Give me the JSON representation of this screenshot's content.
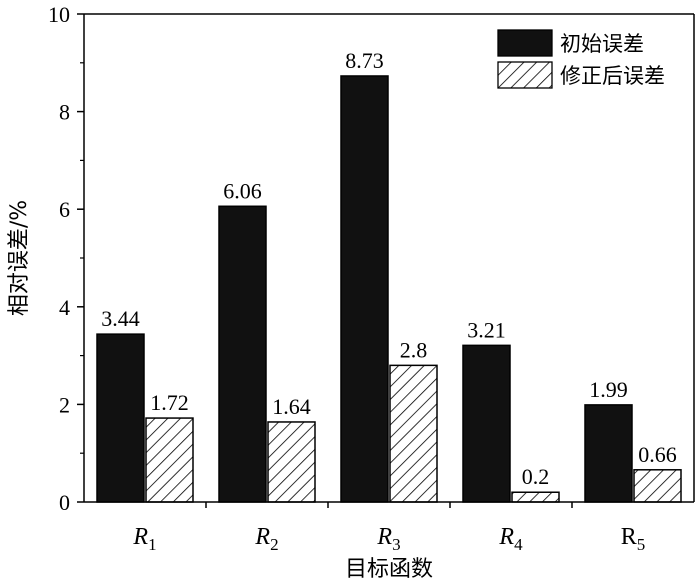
{
  "chart_data": {
    "type": "bar",
    "categories": [
      {
        "main": "R",
        "sub": "1",
        "italic": true
      },
      {
        "main": "R",
        "sub": "2",
        "italic": true
      },
      {
        "main": "R",
        "sub": "3",
        "italic": true
      },
      {
        "main": "R",
        "sub": "4",
        "italic": true
      },
      {
        "main": "R",
        "sub": "5",
        "italic": false
      }
    ],
    "series": [
      {
        "name": "初始误差",
        "values": [
          3.44,
          6.06,
          8.73,
          3.21,
          1.99
        ],
        "labels": [
          "3.44",
          "6.06",
          "8.73",
          "3.21",
          "1.99"
        ],
        "fill": "#111111",
        "pattern": "solid"
      },
      {
        "name": "修正后误差",
        "values": [
          1.72,
          1.64,
          2.8,
          0.2,
          0.66
        ],
        "labels": [
          "1.72",
          "1.64",
          "2.8",
          "0.2",
          "0.66"
        ],
        "fill": "#ffffff",
        "pattern": "hatch"
      }
    ],
    "title": "",
    "xlabel": "目标函数",
    "ylabel": "相对误差/%",
    "ylim": [
      0,
      10
    ],
    "yticks": [
      0,
      2,
      4,
      6,
      8,
      10
    ],
    "grid": false,
    "legend_position": "top-right"
  }
}
